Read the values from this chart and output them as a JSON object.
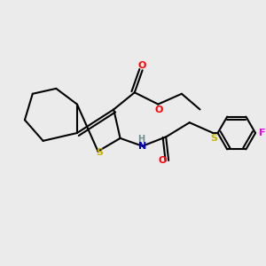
{
  "background_color": "#ebebeb",
  "bond_color": "#000000",
  "figsize": [
    3.0,
    3.0
  ],
  "dpi": 100,
  "atom_colors": {
    "S": "#c8b400",
    "O": "#ff0000",
    "N": "#0000cd",
    "F": "#ee00ee",
    "H": "#6a9090"
  },
  "lw": 1.5
}
